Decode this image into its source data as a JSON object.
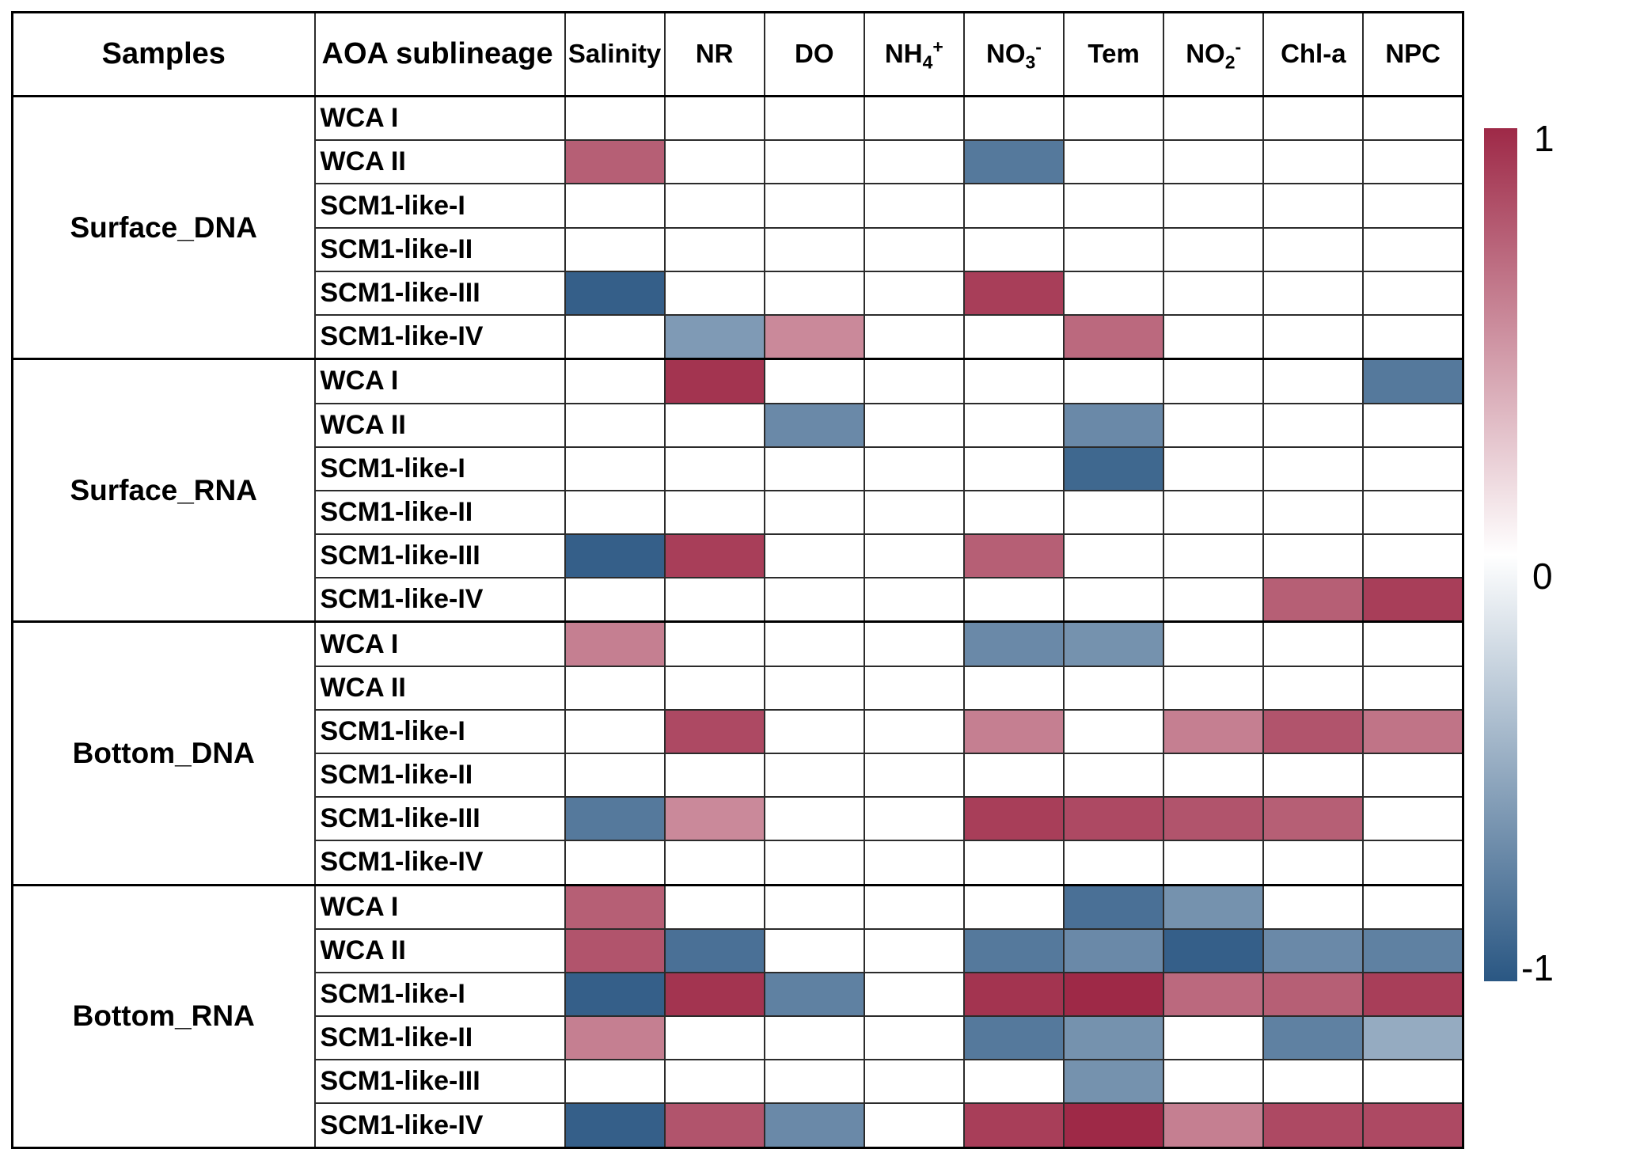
{
  "chart_data": {
    "type": "heatmap",
    "title": "",
    "corner_headers": {
      "samples": "Samples",
      "sublineage": "AOA sublineage"
    },
    "columns": [
      {
        "label": "Salinity",
        "main": "Salinity"
      },
      {
        "label": "NR",
        "main": "NR"
      },
      {
        "label": "DO",
        "main": "DO"
      },
      {
        "label": "NH4+",
        "main": "NH",
        "sub": "4",
        "sup": "+"
      },
      {
        "label": "NO3-",
        "main": "NO",
        "sub": "3",
        "sup": "-"
      },
      {
        "label": "Tem",
        "main": "Tem"
      },
      {
        "label": "NO2-",
        "main": "NO",
        "sub": "2",
        "sup": "-"
      },
      {
        "label": "Chl-a",
        "main": "Chl-a"
      },
      {
        "label": "NPC",
        "main": "NPC"
      }
    ],
    "value_range": [
      -1,
      1
    ],
    "groups": [
      {
        "label": "Surface_DNA",
        "rows": [
          {
            "label": "WCA I",
            "values": [
              0,
              0,
              0,
              0,
              0,
              0,
              0,
              0,
              0
            ]
          },
          {
            "label": "WCA II",
            "values": [
              0.75,
              0,
              0,
              0,
              -0.8,
              0,
              0,
              0,
              0
            ]
          },
          {
            "label": "SCM1-like-I",
            "values": [
              0,
              0,
              0,
              0,
              0,
              0,
              0,
              0,
              0
            ]
          },
          {
            "label": "SCM1-like-II",
            "values": [
              0,
              0,
              0,
              0,
              0,
              0,
              0,
              0,
              0
            ]
          },
          {
            "label": "SCM1-like-III",
            "values": [
              -0.95,
              0,
              0,
              0,
              0.9,
              0,
              0,
              0,
              0
            ]
          },
          {
            "label": "SCM1-like-IV",
            "values": [
              0,
              -0.6,
              0.55,
              0,
              0,
              0.7,
              0,
              0,
              0
            ]
          }
        ]
      },
      {
        "label": "Surface_RNA",
        "rows": [
          {
            "label": "WCA I",
            "values": [
              0,
              0.95,
              0,
              0,
              0,
              0,
              0,
              0,
              -0.8
            ]
          },
          {
            "label": "WCA II",
            "values": [
              0,
              0,
              -0.7,
              0,
              0,
              -0.7,
              0,
              0,
              0
            ]
          },
          {
            "label": "SCM1-like-I",
            "values": [
              0,
              0,
              0,
              0,
              0,
              -0.9,
              0,
              0,
              0
            ]
          },
          {
            "label": "SCM1-like-II",
            "values": [
              0,
              0,
              0,
              0,
              0,
              0,
              0,
              0,
              0
            ]
          },
          {
            "label": "SCM1-like-III",
            "values": [
              -0.95,
              0.9,
              0,
              0,
              0.75,
              0,
              0,
              0,
              0
            ]
          },
          {
            "label": "SCM1-like-IV",
            "values": [
              0,
              0,
              0,
              0,
              0,
              0,
              0,
              0.75,
              0.9
            ]
          }
        ]
      },
      {
        "label": "Bottom_DNA",
        "rows": [
          {
            "label": "WCA I",
            "values": [
              0.6,
              0,
              0,
              0,
              -0.7,
              -0.65,
              0,
              0,
              0
            ]
          },
          {
            "label": "WCA II",
            "values": [
              0,
              0,
              0,
              0,
              0,
              0,
              0,
              0,
              0
            ]
          },
          {
            "label": "SCM1-like-I",
            "values": [
              0,
              0.85,
              0,
              0,
              0.6,
              0,
              0.6,
              0.8,
              0.65
            ]
          },
          {
            "label": "SCM1-like-II",
            "values": [
              0,
              0,
              0,
              0,
              0,
              0,
              0,
              0,
              0
            ]
          },
          {
            "label": "SCM1-like-III",
            "values": [
              -0.8,
              0.55,
              0,
              0,
              0.9,
              0.85,
              0.8,
              0.75,
              0
            ]
          },
          {
            "label": "SCM1-like-IV",
            "values": [
              0,
              0,
              0,
              0,
              0,
              0,
              0,
              0,
              0
            ]
          }
        ]
      },
      {
        "label": "Bottom_RNA",
        "rows": [
          {
            "label": "WCA I",
            "values": [
              0.75,
              0,
              0,
              0,
              0,
              -0.85,
              -0.65,
              0,
              0
            ]
          },
          {
            "label": "WCA II",
            "values": [
              0.8,
              -0.85,
              0,
              0,
              -0.8,
              -0.7,
              -0.95,
              -0.7,
              -0.75
            ]
          },
          {
            "label": "SCM1-like-I",
            "values": [
              -0.95,
              0.95,
              -0.75,
              0,
              0.95,
              1,
              0.7,
              0.75,
              0.9
            ]
          },
          {
            "label": "SCM1-like-II",
            "values": [
              0.6,
              0,
              0,
              0,
              -0.8,
              -0.65,
              0,
              -0.75,
              -0.5
            ]
          },
          {
            "label": "SCM1-like-III",
            "values": [
              0,
              0,
              0,
              0,
              0,
              -0.65,
              0,
              0,
              0
            ]
          },
          {
            "label": "SCM1-like-IV",
            "values": [
              -0.95,
              0.8,
              -0.7,
              0,
              0.9,
              1,
              0.6,
              0.85,
              0.85
            ]
          }
        ]
      }
    ],
    "colorbar": {
      "max_label": "1",
      "mid_label": "0",
      "min_label": "-1",
      "max_color": "#9e2947",
      "zero_color": "#ffffff",
      "min_color": "#2a5783",
      "position": "right"
    },
    "grid": true,
    "legend_position": "right"
  }
}
